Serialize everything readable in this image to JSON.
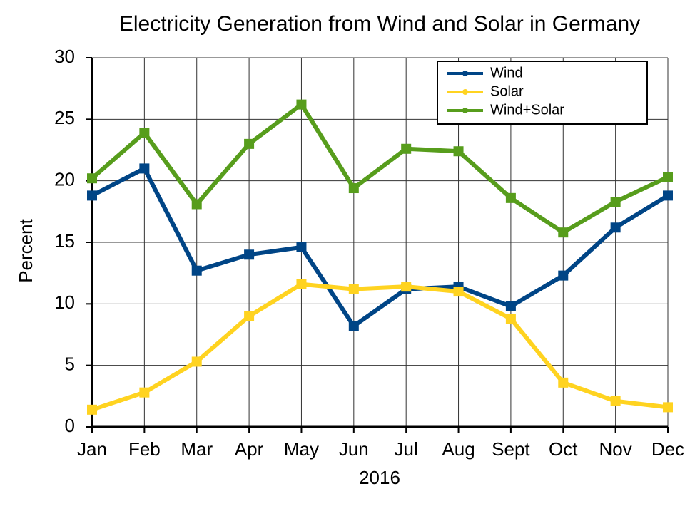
{
  "chart_data": {
    "type": "line",
    "title": "Electricity Generation from Wind and Solar in Germany",
    "x_label": "2016",
    "y_label": "Percent",
    "categories": [
      "Jan",
      "Feb",
      "Mar",
      "Apr",
      "May",
      "Jun",
      "Jul",
      "Aug",
      "Sept",
      "Oct",
      "Nov",
      "Dec"
    ],
    "series": [
      {
        "name": "Wind",
        "color": "#004586",
        "values": [
          18.8,
          21.0,
          12.7,
          14.0,
          14.6,
          8.2,
          11.2,
          11.4,
          9.8,
          12.3,
          16.2,
          18.8
        ]
      },
      {
        "name": "Solar",
        "color": "#ffd320",
        "values": [
          1.4,
          2.8,
          5.3,
          9.0,
          11.6,
          11.2,
          11.4,
          11.0,
          8.8,
          3.6,
          2.1,
          1.6
        ]
      },
      {
        "name": "Wind+Solar",
        "color": "#579d1c",
        "values": [
          20.2,
          23.9,
          18.1,
          23.0,
          26.2,
          19.4,
          22.6,
          22.4,
          18.6,
          15.8,
          18.3,
          20.3
        ]
      }
    ],
    "ylim": [
      0,
      30
    ],
    "yticks": [
      0,
      5,
      10,
      15,
      20,
      25,
      30
    ],
    "grid": true,
    "legend": "top-right"
  }
}
